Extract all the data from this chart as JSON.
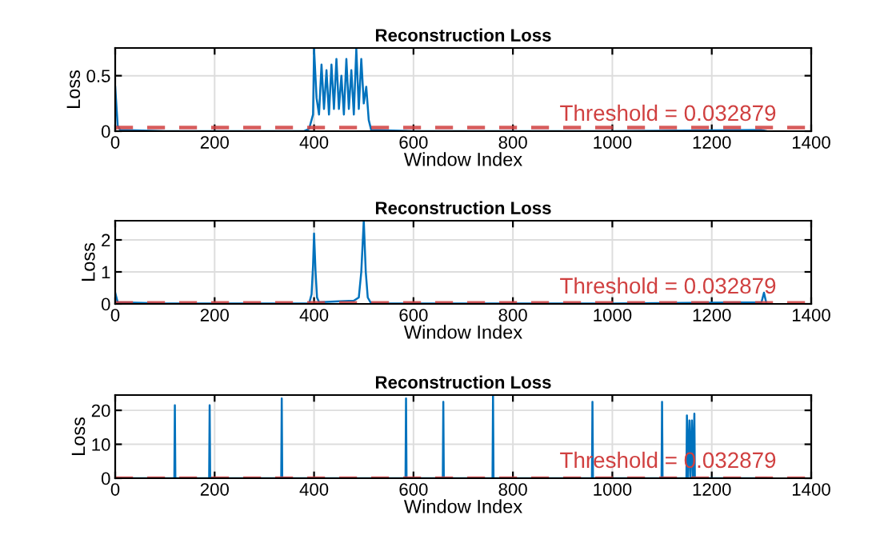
{
  "chart_data": [
    {
      "type": "line",
      "title": "Reconstruction Loss",
      "xlabel": "Window Index",
      "ylabel": "Loss",
      "xlim": [
        0,
        1400
      ],
      "xticks": [
        0,
        200,
        400,
        600,
        800,
        1000,
        1200,
        1400
      ],
      "ylim": [
        0,
        0.75
      ],
      "yticks": [
        0,
        0.5
      ],
      "grid": true,
      "series": [
        {
          "color": "#0072bd",
          "x": [
            0,
            5,
            10,
            100,
            380,
            390,
            398,
            400,
            405,
            410,
            415,
            420,
            425,
            430,
            435,
            440,
            445,
            450,
            455,
            460,
            465,
            470,
            475,
            480,
            485,
            490,
            495,
            500,
            505,
            510,
            515,
            600,
            1000,
            1300,
            1310
          ],
          "values": [
            0.4,
            0.05,
            0.01,
            0,
            0,
            0.02,
            0.15,
            0.74,
            0.3,
            0.15,
            0.6,
            0.2,
            0.55,
            0.15,
            0.6,
            0.2,
            0.65,
            0.2,
            0.5,
            0.15,
            0.65,
            0.2,
            0.55,
            0.15,
            0.74,
            0.2,
            0.65,
            0.25,
            0.4,
            0.1,
            0.01,
            0,
            0,
            0.01,
            0
          ]
        }
      ],
      "ref_lines": [
        {
          "axis": "y",
          "value": 0.032879,
          "label": "Threshold = 0.032879",
          "color": "#d04040",
          "line_style": "dashed"
        }
      ]
    },
    {
      "type": "line",
      "title": "Reconstruction Loss",
      "xlabel": "Window Index",
      "ylabel": "Loss",
      "xlim": [
        0,
        1400
      ],
      "xticks": [
        0,
        200,
        400,
        600,
        800,
        1000,
        1200,
        1400
      ],
      "ylim": [
        0,
        2.6
      ],
      "yticks": [
        0,
        1,
        2
      ],
      "grid": true,
      "series": [
        {
          "color": "#0072bd",
          "x": [
            0,
            5,
            100,
            390,
            395,
            398,
            400,
            403,
            406,
            410,
            450,
            480,
            490,
            495,
            500,
            504,
            508,
            515,
            1000,
            1300,
            1305,
            1310
          ],
          "values": [
            0.35,
            0.05,
            0.01,
            0.01,
            0.3,
            1.2,
            2.2,
            1.0,
            0.2,
            0.05,
            0.08,
            0.1,
            0.2,
            1.0,
            2.6,
            1.0,
            0.2,
            0.01,
            0.01,
            0.05,
            0.35,
            0.01
          ]
        }
      ],
      "ref_lines": [
        {
          "axis": "y",
          "value": 0.032879,
          "label": "Threshold = 0.032879",
          "color": "#d04040",
          "line_style": "dashed"
        }
      ]
    },
    {
      "type": "line",
      "title": "Reconstruction Loss",
      "xlabel": "Window Index",
      "ylabel": "Loss",
      "xlim": [
        0,
        1400
      ],
      "xticks": [
        0,
        200,
        400,
        600,
        800,
        1000,
        1200,
        1400
      ],
      "ylim": [
        0,
        24.5
      ],
      "yticks": [
        0,
        10,
        20
      ],
      "grid": true,
      "series": [
        {
          "color": "#0072bd",
          "x": [
            0,
            119,
            120,
            121,
            189,
            190,
            191,
            334,
            335,
            336,
            584,
            585,
            586,
            659,
            660,
            661,
            759,
            760,
            761,
            959,
            960,
            961,
            1099,
            1100,
            1101,
            1149,
            1150,
            1152,
            1155,
            1157,
            1160,
            1162,
            1165,
            1166,
            1310
          ],
          "values": [
            0,
            0,
            21.5,
            0,
            0,
            21.5,
            0,
            0,
            23.5,
            0,
            0,
            23.5,
            0,
            0,
            22.5,
            0,
            0,
            24.5,
            0,
            0,
            22.5,
            0,
            0,
            22.5,
            0,
            0,
            18.5,
            0,
            17,
            0,
            17,
            0,
            19,
            0,
            0
          ]
        }
      ],
      "ref_lines": [
        {
          "axis": "y",
          "value": 0.032879,
          "label": "Threshold = 0.032879",
          "color": "#d04040",
          "line_style": "dashed"
        }
      ]
    }
  ]
}
